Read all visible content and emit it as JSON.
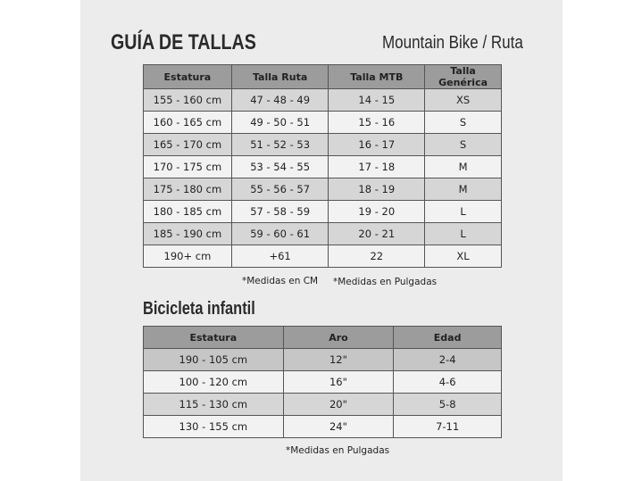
{
  "header": {
    "title": "GUÍA DE TALLAS",
    "subtitle": "Mountain Bike / Ruta"
  },
  "adult_table": {
    "columns": [
      "Estatura",
      "Talla Ruta",
      "Talla MTB",
      "Talla Genérica"
    ],
    "rows": [
      [
        "155 - 160 cm",
        "47 - 48 - 49",
        "14 - 15",
        "XS"
      ],
      [
        "160 - 165 cm",
        "49 - 50 - 51",
        "15 - 16",
        "S"
      ],
      [
        "165 - 170 cm",
        "51 - 52 - 53",
        "16 - 17",
        "S"
      ],
      [
        "170 - 175 cm",
        "53 - 54 - 55",
        "17 - 18",
        "M"
      ],
      [
        "175 - 180 cm",
        "55 - 56 - 57",
        "18 - 19",
        "M"
      ],
      [
        "180 - 185 cm",
        "57 - 58 - 59",
        "19 - 20",
        "L"
      ],
      [
        "185 - 190 cm",
        "59 - 60 - 61",
        "20 - 21",
        "L"
      ],
      [
        "190+ cm",
        "+61",
        "22",
        "XL"
      ]
    ],
    "notes": [
      "*Medidas en CM",
      "*Medidas en Pulgadas"
    ]
  },
  "kids": {
    "title": "Bicicleta infantil",
    "columns": [
      "Estatura",
      "Aro",
      "Edad"
    ],
    "rows": [
      [
        "190 - 105 cm",
        "12\"",
        "2-4"
      ],
      [
        "100 - 120 cm",
        "16\"",
        "4-6"
      ],
      [
        "115 - 130 cm",
        "20\"",
        "5-8"
      ],
      [
        "130 - 155 cm",
        "24\"",
        "7-11"
      ]
    ],
    "note": "*Medidas en Pulgadas"
  }
}
